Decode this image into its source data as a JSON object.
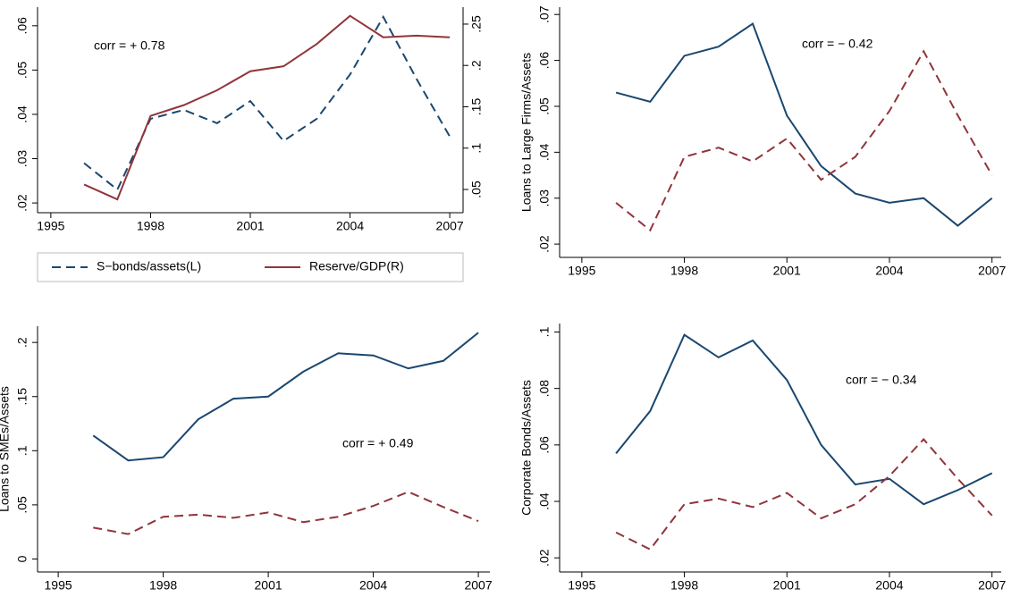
{
  "chart_data": [
    {
      "type": "line",
      "x": [
        1996,
        1997,
        1998,
        1999,
        2000,
        2001,
        2002,
        2003,
        2004,
        2005,
        2006,
        2007
      ],
      "series": [
        {
          "name": "S−bonds/assets(L)",
          "color": "#1a476f",
          "dashed": true,
          "values": [
            0.029,
            0.023,
            0.039,
            0.041,
            0.038,
            0.043,
            0.034,
            0.039,
            0.049,
            0.062,
            0.048,
            0.035
          ]
        },
        {
          "name": "Reserve/GDP(R)",
          "color": "#90353b",
          "dashed": false,
          "axis": "y2",
          "values": [
            0.056,
            0.038,
            0.139,
            0.152,
            0.17,
            0.193,
            0.199,
            0.226,
            0.26,
            0.234,
            0.236,
            0.234
          ]
        }
      ],
      "xlim": [
        1994.6,
        2007.4
      ],
      "xticks": [
        1995,
        1998,
        2001,
        2004,
        2007
      ],
      "ylim": [
        0.0178,
        0.0642
      ],
      "yticks": [
        {
          "value": 0.02,
          "label": ".02"
        },
        {
          "value": 0.03,
          "label": ".03"
        },
        {
          "value": 0.04,
          "label": ".04"
        },
        {
          "value": 0.05,
          "label": ".05"
        },
        {
          "value": 0.06,
          "label": ".06"
        }
      ],
      "y2lim": [
        0.0219,
        0.2705
      ],
      "y2ticks": [
        {
          "value": 0.05,
          "label": ".05"
        },
        {
          "value": 0.1,
          "label": ".1"
        },
        {
          "value": 0.15,
          "label": ".15"
        },
        {
          "value": 0.2,
          "label": ".2"
        },
        {
          "value": 0.25,
          "label": ".25"
        }
      ],
      "annotation": "corr = + 0.78",
      "legend": "bottom"
    },
    {
      "type": "line",
      "x": [
        1996,
        1997,
        1998,
        1999,
        2000,
        2001,
        2002,
        2003,
        2004,
        2005,
        2006,
        2007
      ],
      "series": [
        {
          "color": "#1a476f",
          "dashed": false,
          "values": [
            0.053,
            0.051,
            0.061,
            0.063,
            0.068,
            0.048,
            0.037,
            0.031,
            0.029,
            0.03,
            0.024,
            0.03
          ]
        },
        {
          "color": "#90353b",
          "dashed": true,
          "values": [
            0.029,
            0.023,
            0.039,
            0.041,
            0.038,
            0.043,
            0.034,
            0.039,
            0.049,
            0.062,
            0.048,
            0.035
          ]
        }
      ],
      "xlim": [
        1994.35,
        2007.27
      ],
      "xticks": [
        1995,
        1998,
        2001,
        2004,
        2007
      ],
      "ylim": [
        0.0171,
        0.0716
      ],
      "yticks": [
        {
          "value": 0.02,
          "label": ".02"
        },
        {
          "value": 0.03,
          "label": ".03"
        },
        {
          "value": 0.04,
          "label": ".04"
        },
        {
          "value": 0.05,
          "label": ".05"
        },
        {
          "value": 0.06,
          "label": ".06"
        },
        {
          "value": 0.07,
          "label": ".07"
        }
      ],
      "y_label": "Loans to Large Firms/Assets",
      "annotation": "corr = − 0.42"
    },
    {
      "type": "line",
      "x": [
        1996,
        1997,
        1998,
        1999,
        2000,
        2001,
        2002,
        2003,
        2004,
        2005,
        2006,
        2007
      ],
      "series": [
        {
          "color": "#1a476f",
          "dashed": false,
          "values": [
            0.114,
            0.091,
            0.094,
            0.129,
            0.148,
            0.15,
            0.173,
            0.19,
            0.188,
            0.176,
            0.183,
            0.209
          ]
        },
        {
          "color": "#90353b",
          "dashed": true,
          "values": [
            0.029,
            0.023,
            0.039,
            0.041,
            0.038,
            0.043,
            0.034,
            0.039,
            0.049,
            0.062,
            0.048,
            0.035
          ]
        }
      ],
      "xlim": [
        1994.41,
        2007.33
      ],
      "xticks": [
        1995,
        1998,
        2001,
        2004,
        2007
      ],
      "ylim": [
        -0.012,
        0.215
      ],
      "yticks": [
        0,
        {
          "value": 0.05,
          "label": ".05"
        },
        {
          "value": 0.1,
          "label": ".1"
        },
        {
          "value": 0.15,
          "label": ".15"
        },
        {
          "value": 0.2,
          "label": ".2"
        }
      ],
      "y_label": "Loans to SMEs/Assets",
      "annotation": "corr = + 0.49"
    },
    {
      "type": "line",
      "x": [
        1996,
        1997,
        1998,
        1999,
        2000,
        2001,
        2002,
        2003,
        2004,
        2005,
        2006,
        2007
      ],
      "series": [
        {
          "color": "#1a476f",
          "dashed": false,
          "values": [
            0.057,
            0.072,
            0.099,
            0.091,
            0.097,
            0.083,
            0.06,
            0.046,
            0.048,
            0.039,
            0.044,
            0.05
          ]
        },
        {
          "color": "#90353b",
          "dashed": true,
          "values": [
            0.029,
            0.023,
            0.039,
            0.041,
            0.038,
            0.043,
            0.034,
            0.039,
            0.049,
            0.062,
            0.048,
            0.035
          ]
        }
      ],
      "xlim": [
        1994.35,
        2007.27
      ],
      "xticks": [
        1995,
        1998,
        2001,
        2004,
        2007
      ],
      "ylim": [
        0.015,
        0.103
      ],
      "yticks": [
        {
          "value": 0.02,
          "label": ".02"
        },
        {
          "value": 0.04,
          "label": ".04"
        },
        {
          "value": 0.06,
          "label": ".06"
        },
        {
          "value": 0.08,
          "label": ".08"
        },
        {
          "value": 0.1,
          "label": ".1"
        }
      ],
      "y_label": "Corporate Bonds/Assets",
      "annotation": "corr = − 0.34"
    }
  ]
}
